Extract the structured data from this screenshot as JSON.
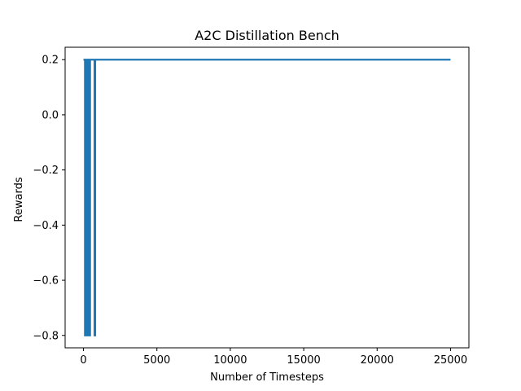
{
  "chart_data": {
    "type": "line",
    "title": "A2C Distillation Bench",
    "xlabel": "Number of Timesteps",
    "ylabel": "Rewards",
    "xlim": [
      -1250,
      26250
    ],
    "ylim": [
      -0.845,
      0.245
    ],
    "xticks": [
      0,
      5000,
      10000,
      15000,
      20000,
      25000
    ],
    "xtick_labels": [
      "0",
      "5000",
      "10000",
      "15000",
      "20000",
      "25000"
    ],
    "yticks": [
      0.2,
      0.0,
      -0.2,
      -0.4,
      -0.6,
      -0.8
    ],
    "ytick_labels": [
      "0.2",
      "0.0",
      "−0.2",
      "−0.4",
      "−0.6",
      "−0.8"
    ],
    "grid": false,
    "series": [
      {
        "color": "#1f77b4",
        "x": [
          0,
          100,
          100,
          150,
          150,
          250,
          250,
          300,
          300,
          400,
          400,
          450,
          450,
          750,
          750,
          800,
          800,
          25000
        ],
        "y": [
          0.2,
          0.2,
          -0.8,
          -0.8,
          0.2,
          0.2,
          -0.8,
          -0.8,
          0.2,
          0.2,
          -0.8,
          -0.8,
          0.2,
          0.2,
          -0.8,
          -0.8,
          0.2,
          0.2
        ]
      }
    ]
  }
}
